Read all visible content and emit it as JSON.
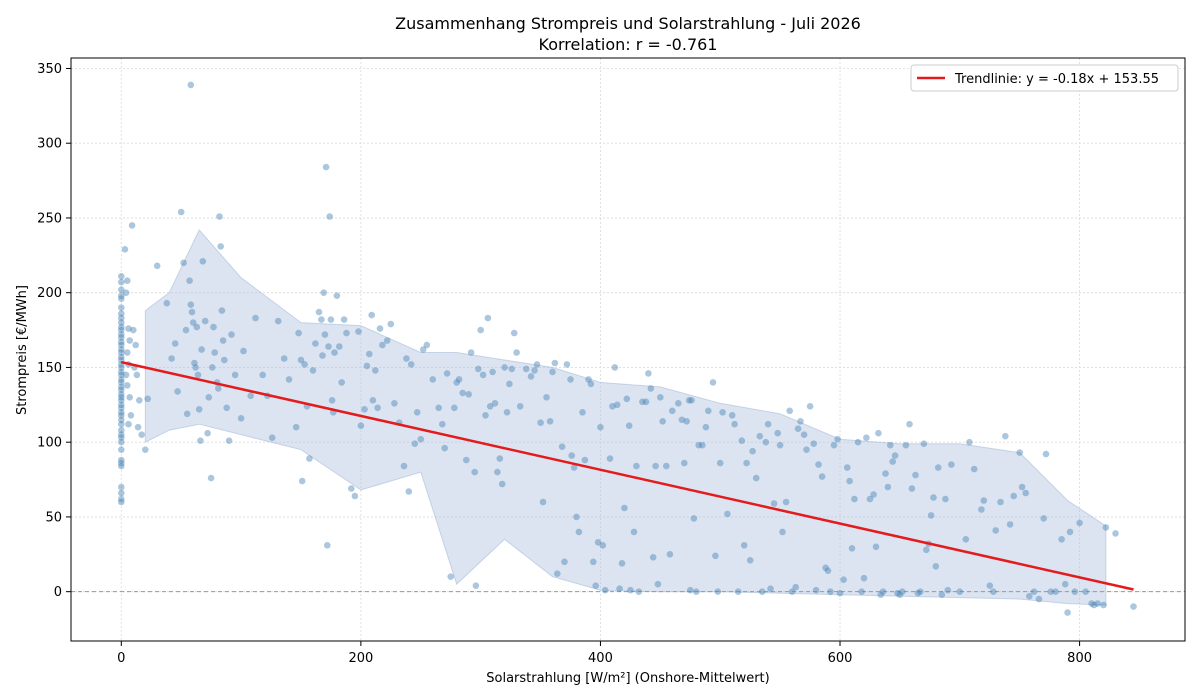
{
  "chart_data": {
    "type": "scatter",
    "title": "Zusammenhang Strompreis und Solarstrahlung - Juli 2026",
    "subtitle": "Korrelation: r = -0.761",
    "xlabel": "Solarstrahlung [W/m²] (Onshore-Mittelwert)",
    "ylabel": "Strompreis [€/MWh]",
    "xlim": [
      -42,
      888
    ],
    "ylim": [
      -33,
      357
    ],
    "x_ticks": [
      0,
      200,
      400,
      600,
      800
    ],
    "y_ticks": [
      0,
      50,
      100,
      150,
      200,
      250,
      300,
      350
    ],
    "grid": true,
    "legend_position": "top-right",
    "colors": {
      "points": "#4682b4",
      "trend": "#e41a1c",
      "band": "#b0c4de"
    },
    "trendline": {
      "name": "Trendlinie: y = -0.18x + 153.55",
      "slope": -0.18,
      "intercept": 153.55,
      "x_range": [
        0,
        845
      ]
    },
    "zero_line": 0,
    "band": {
      "x": [
        20,
        40,
        65,
        100,
        150,
        200,
        250,
        280,
        320,
        360,
        400,
        450,
        500,
        550,
        600,
        650,
        700,
        750,
        790,
        822
      ],
      "upper": [
        188,
        200,
        242,
        210,
        180,
        178,
        160,
        160,
        155,
        150,
        140,
        137,
        126,
        119,
        102,
        99,
        99,
        93,
        61,
        44
      ],
      "lower": [
        100,
        108,
        112,
        105,
        95,
        68,
        80,
        5,
        35,
        10,
        1,
        0,
        0,
        -1,
        -2,
        -3,
        -4,
        -5,
        -8,
        -9
      ]
    },
    "points": [
      [
        0,
        60
      ],
      [
        0,
        62
      ],
      [
        0,
        66
      ],
      [
        0,
        70
      ],
      [
        0,
        84
      ],
      [
        0,
        86
      ],
      [
        0,
        88
      ],
      [
        0,
        95
      ],
      [
        0,
        100
      ],
      [
        0,
        103
      ],
      [
        0,
        105
      ],
      [
        0,
        108
      ],
      [
        0,
        112
      ],
      [
        0,
        115
      ],
      [
        0,
        118
      ],
      [
        0,
        120
      ],
      [
        0,
        123
      ],
      [
        0,
        125
      ],
      [
        0,
        128
      ],
      [
        0,
        130
      ],
      [
        0,
        132
      ],
      [
        0,
        135
      ],
      [
        0,
        137
      ],
      [
        0,
        140
      ],
      [
        0,
        142
      ],
      [
        0,
        145
      ],
      [
        0,
        147
      ],
      [
        0,
        150
      ],
      [
        0,
        152
      ],
      [
        0,
        155
      ],
      [
        0,
        157
      ],
      [
        0,
        160
      ],
      [
        0,
        162
      ],
      [
        0,
        165
      ],
      [
        0,
        167
      ],
      [
        0,
        170
      ],
      [
        0,
        172
      ],
      [
        0,
        175
      ],
      [
        0,
        177
      ],
      [
        0,
        180
      ],
      [
        0,
        183
      ],
      [
        0,
        186
      ],
      [
        0,
        190
      ],
      [
        0,
        196
      ],
      [
        0,
        198
      ],
      [
        0,
        202
      ],
      [
        0,
        207
      ],
      [
        0,
        211
      ],
      [
        3,
        229
      ],
      [
        5,
        208
      ],
      [
        4,
        200
      ],
      [
        6,
        176
      ],
      [
        7,
        168
      ],
      [
        5,
        160
      ],
      [
        6,
        152
      ],
      [
        4,
        145
      ],
      [
        5,
        138
      ],
      [
        7,
        130
      ],
      [
        6,
        112
      ],
      [
        8,
        118
      ],
      [
        9,
        245
      ],
      [
        10,
        175
      ],
      [
        12,
        165
      ],
      [
        11,
        150
      ],
      [
        13,
        145
      ],
      [
        14,
        110
      ],
      [
        15,
        128
      ],
      [
        17,
        105
      ],
      [
        20,
        95
      ],
      [
        22,
        129
      ],
      [
        30,
        218
      ],
      [
        38,
        193
      ],
      [
        42,
        156
      ],
      [
        45,
        166
      ],
      [
        47,
        134
      ],
      [
        50,
        254
      ],
      [
        52,
        220
      ],
      [
        54,
        175
      ],
      [
        55,
        119
      ],
      [
        58,
        339
      ],
      [
        57,
        208
      ],
      [
        58,
        192
      ],
      [
        59,
        187
      ],
      [
        60,
        180
      ],
      [
        61,
        153
      ],
      [
        62,
        150
      ],
      [
        63,
        177
      ],
      [
        64,
        145
      ],
      [
        65,
        122
      ],
      [
        66,
        101
      ],
      [
        67,
        162
      ],
      [
        68,
        221
      ],
      [
        70,
        181
      ],
      [
        72,
        106
      ],
      [
        73,
        130
      ],
      [
        75,
        76
      ],
      [
        76,
        150
      ],
      [
        77,
        177
      ],
      [
        78,
        160
      ],
      [
        80,
        140
      ],
      [
        81,
        136
      ],
      [
        82,
        251
      ],
      [
        83,
        231
      ],
      [
        84,
        188
      ],
      [
        85,
        168
      ],
      [
        86,
        155
      ],
      [
        88,
        123
      ],
      [
        90,
        101
      ],
      [
        92,
        172
      ],
      [
        95,
        145
      ],
      [
        100,
        116
      ],
      [
        102,
        161
      ],
      [
        108,
        131
      ],
      [
        112,
        183
      ],
      [
        118,
        145
      ],
      [
        122,
        131
      ],
      [
        126,
        103
      ],
      [
        131,
        181
      ],
      [
        136,
        156
      ],
      [
        140,
        142
      ],
      [
        146,
        110
      ],
      [
        148,
        173
      ],
      [
        150,
        155
      ],
      [
        151,
        74
      ],
      [
        153,
        152
      ],
      [
        155,
        124
      ],
      [
        157,
        89
      ],
      [
        160,
        148
      ],
      [
        162,
        166
      ],
      [
        165,
        187
      ],
      [
        167,
        182
      ],
      [
        168,
        158
      ],
      [
        169,
        200
      ],
      [
        170,
        172
      ],
      [
        171,
        284
      ],
      [
        172,
        31
      ],
      [
        173,
        164
      ],
      [
        174,
        251
      ],
      [
        175,
        182
      ],
      [
        176,
        128
      ],
      [
        177,
        120
      ],
      [
        178,
        160
      ],
      [
        180,
        198
      ],
      [
        182,
        164
      ],
      [
        184,
        140
      ],
      [
        186,
        182
      ],
      [
        188,
        173
      ],
      [
        192,
        69
      ],
      [
        195,
        64
      ],
      [
        198,
        174
      ],
      [
        200,
        111
      ],
      [
        203,
        122
      ],
      [
        205,
        151
      ],
      [
        207,
        159
      ],
      [
        209,
        185
      ],
      [
        210,
        128
      ],
      [
        212,
        148
      ],
      [
        214,
        123
      ],
      [
        216,
        176
      ],
      [
        218,
        165
      ],
      [
        222,
        168
      ],
      [
        225,
        179
      ],
      [
        228,
        126
      ],
      [
        232,
        113
      ],
      [
        236,
        84
      ],
      [
        238,
        156
      ],
      [
        240,
        67
      ],
      [
        242,
        152
      ],
      [
        245,
        99
      ],
      [
        247,
        120
      ],
      [
        250,
        102
      ],
      [
        252,
        162
      ],
      [
        255,
        165
      ],
      [
        260,
        142
      ],
      [
        265,
        123
      ],
      [
        268,
        112
      ],
      [
        270,
        96
      ],
      [
        272,
        146
      ],
      [
        275,
        10
      ],
      [
        278,
        123
      ],
      [
        280,
        140
      ],
      [
        282,
        142
      ],
      [
        285,
        133
      ],
      [
        288,
        88
      ],
      [
        290,
        132
      ],
      [
        292,
        160
      ],
      [
        295,
        80
      ],
      [
        296,
        4
      ],
      [
        298,
        149
      ],
      [
        300,
        175
      ],
      [
        302,
        145
      ],
      [
        304,
        118
      ],
      [
        306,
        183
      ],
      [
        308,
        124
      ],
      [
        310,
        147
      ],
      [
        312,
        126
      ],
      [
        314,
        80
      ],
      [
        316,
        89
      ],
      [
        318,
        72
      ],
      [
        320,
        150
      ],
      [
        322,
        120
      ],
      [
        324,
        139
      ],
      [
        326,
        149
      ],
      [
        328,
        173
      ],
      [
        330,
        160
      ],
      [
        333,
        124
      ],
      [
        338,
        149
      ],
      [
        342,
        144
      ],
      [
        345,
        148
      ],
      [
        347,
        152
      ],
      [
        350,
        113
      ],
      [
        352,
        60
      ],
      [
        355,
        130
      ],
      [
        358,
        114
      ],
      [
        360,
        147
      ],
      [
        362,
        153
      ],
      [
        364,
        12
      ],
      [
        368,
        97
      ],
      [
        370,
        20
      ],
      [
        372,
        152
      ],
      [
        375,
        142
      ],
      [
        376,
        91
      ],
      [
        378,
        83
      ],
      [
        380,
        50
      ],
      [
        382,
        40
      ],
      [
        385,
        120
      ],
      [
        387,
        88
      ],
      [
        390,
        142
      ],
      [
        392,
        139
      ],
      [
        394,
        20
      ],
      [
        396,
        4
      ],
      [
        398,
        33
      ],
      [
        400,
        110
      ],
      [
        402,
        31
      ],
      [
        404,
        1
      ],
      [
        408,
        89
      ],
      [
        410,
        124
      ],
      [
        412,
        150
      ],
      [
        414,
        125
      ],
      [
        416,
        2
      ],
      [
        418,
        19
      ],
      [
        420,
        56
      ],
      [
        422,
        129
      ],
      [
        424,
        111
      ],
      [
        425,
        1
      ],
      [
        428,
        40
      ],
      [
        430,
        84
      ],
      [
        432,
        0
      ],
      [
        435,
        127
      ],
      [
        438,
        127
      ],
      [
        440,
        146
      ],
      [
        442,
        136
      ],
      [
        444,
        23
      ],
      [
        446,
        84
      ],
      [
        448,
        5
      ],
      [
        450,
        130
      ],
      [
        452,
        114
      ],
      [
        455,
        84
      ],
      [
        458,
        25
      ],
      [
        460,
        121
      ],
      [
        465,
        126
      ],
      [
        468,
        115
      ],
      [
        470,
        86
      ],
      [
        472,
        114
      ],
      [
        474,
        128
      ],
      [
        475,
        1
      ],
      [
        476,
        128
      ],
      [
        478,
        49
      ],
      [
        480,
        0
      ],
      [
        482,
        98
      ],
      [
        485,
        98
      ],
      [
        488,
        110
      ],
      [
        490,
        121
      ],
      [
        494,
        140
      ],
      [
        496,
        24
      ],
      [
        498,
        0
      ],
      [
        500,
        86
      ],
      [
        502,
        120
      ],
      [
        506,
        52
      ],
      [
        510,
        118
      ],
      [
        512,
        112
      ],
      [
        515,
        0
      ],
      [
        518,
        101
      ],
      [
        520,
        31
      ],
      [
        522,
        86
      ],
      [
        525,
        21
      ],
      [
        527,
        94
      ],
      [
        530,
        76
      ],
      [
        533,
        104
      ],
      [
        535,
        0
      ],
      [
        538,
        100
      ],
      [
        540,
        112
      ],
      [
        542,
        2
      ],
      [
        545,
        59
      ],
      [
        548,
        106
      ],
      [
        550,
        98
      ],
      [
        552,
        40
      ],
      [
        555,
        60
      ],
      [
        558,
        121
      ],
      [
        560,
        0
      ],
      [
        563,
        3
      ],
      [
        565,
        109
      ],
      [
        567,
        114
      ],
      [
        570,
        105
      ],
      [
        572,
        95
      ],
      [
        575,
        124
      ],
      [
        578,
        99
      ],
      [
        580,
        1
      ],
      [
        582,
        85
      ],
      [
        585,
        77
      ],
      [
        588,
        16
      ],
      [
        590,
        14
      ],
      [
        592,
        0
      ],
      [
        595,
        98
      ],
      [
        598,
        102
      ],
      [
        600,
        -1
      ],
      [
        603,
        8
      ],
      [
        606,
        83
      ],
      [
        608,
        74
      ],
      [
        610,
        29
      ],
      [
        612,
        62
      ],
      [
        615,
        100
      ],
      [
        618,
        0
      ],
      [
        620,
        9
      ],
      [
        622,
        103
      ],
      [
        625,
        62
      ],
      [
        628,
        65
      ],
      [
        630,
        30
      ],
      [
        632,
        106
      ],
      [
        634,
        -2
      ],
      [
        636,
        0
      ],
      [
        638,
        79
      ],
      [
        640,
        70
      ],
      [
        642,
        98
      ],
      [
        644,
        87
      ],
      [
        646,
        91
      ],
      [
        648,
        -1
      ],
      [
        650,
        -2
      ],
      [
        652,
        0
      ],
      [
        655,
        98
      ],
      [
        658,
        112
      ],
      [
        660,
        69
      ],
      [
        663,
        78
      ],
      [
        665,
        -1
      ],
      [
        667,
        0
      ],
      [
        670,
        99
      ],
      [
        672,
        28
      ],
      [
        674,
        32
      ],
      [
        676,
        51
      ],
      [
        678,
        63
      ],
      [
        680,
        17
      ],
      [
        682,
        83
      ],
      [
        685,
        -2
      ],
      [
        688,
        62
      ],
      [
        690,
        1
      ],
      [
        693,
        85
      ],
      [
        700,
        0
      ],
      [
        705,
        35
      ],
      [
        708,
        100
      ],
      [
        712,
        82
      ],
      [
        718,
        55
      ],
      [
        720,
        61
      ],
      [
        725,
        4
      ],
      [
        728,
        0
      ],
      [
        730,
        41
      ],
      [
        734,
        60
      ],
      [
        738,
        104
      ],
      [
        742,
        45
      ],
      [
        745,
        64
      ],
      [
        750,
        93
      ],
      [
        752,
        70
      ],
      [
        755,
        66
      ],
      [
        758,
        -3
      ],
      [
        762,
        0
      ],
      [
        766,
        -5
      ],
      [
        770,
        49
      ],
      [
        772,
        92
      ],
      [
        776,
        0
      ],
      [
        780,
        0
      ],
      [
        785,
        35
      ],
      [
        788,
        5
      ],
      [
        790,
        -14
      ],
      [
        792,
        40
      ],
      [
        796,
        0
      ],
      [
        800,
        46
      ],
      [
        805,
        0
      ],
      [
        810,
        -8
      ],
      [
        812,
        -9
      ],
      [
        815,
        -8
      ],
      [
        820,
        -9
      ],
      [
        822,
        43
      ],
      [
        830,
        39
      ],
      [
        845,
        -10
      ]
    ]
  }
}
